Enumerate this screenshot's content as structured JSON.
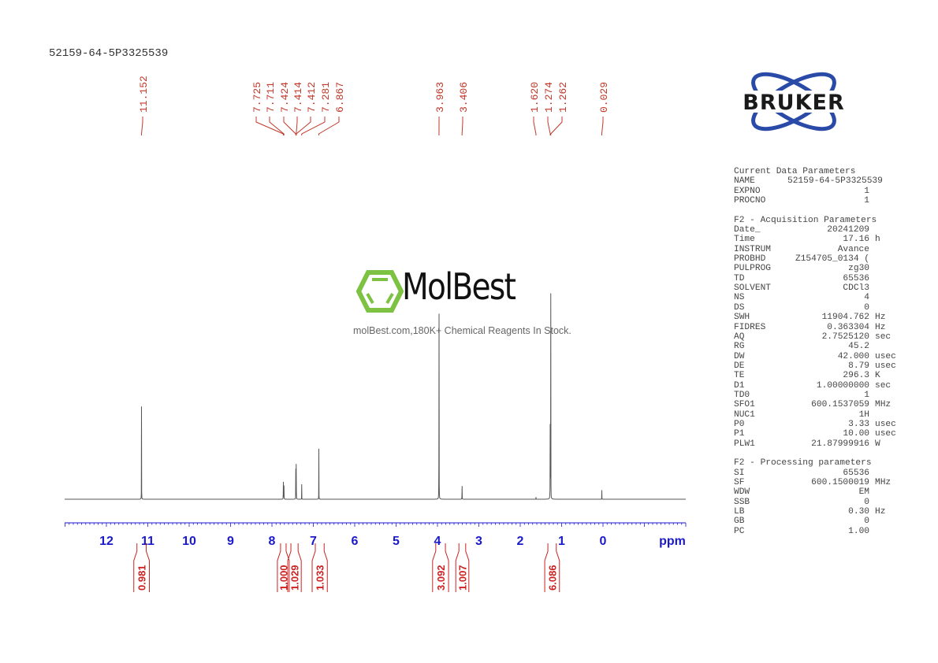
{
  "title": "52159-64-5P3325539",
  "logo": {
    "text": "BRUKER",
    "color": "#2a4aa8"
  },
  "watermark": {
    "brand": "MolBest",
    "tagline": "molBest.com,180K+ Chemical Reagents In Stock.",
    "icon": "benzene-hexagon-icon",
    "color": "#7dc242"
  },
  "colors": {
    "spectrum": "#555555",
    "peak_labels": "#c0392b",
    "axis": "#1a1acc",
    "integrals": "#cc2222"
  },
  "chart_data": {
    "type": "line",
    "xlabel": "ppm",
    "xlim": [
      13,
      -2
    ],
    "x_reversed": true,
    "xticks": [
      "12",
      "11",
      "10",
      "9",
      "8",
      "7",
      "6",
      "5",
      "4",
      "3",
      "2",
      "1",
      "0"
    ],
    "peaks": [
      {
        "ppm": 11.152,
        "intensity": 30
      },
      {
        "ppm": 7.725,
        "intensity": 10
      },
      {
        "ppm": 7.711,
        "intensity": 10
      },
      {
        "ppm": 7.424,
        "intensity": 9
      },
      {
        "ppm": 7.414,
        "intensity": 9
      },
      {
        "ppm": 7.412,
        "intensity": 8
      },
      {
        "ppm": 7.281,
        "intensity": 4.4
      },
      {
        "ppm": 6.867,
        "intensity": 16
      },
      {
        "ppm": 3.963,
        "intensity": 100
      },
      {
        "ppm": 3.406,
        "intensity": 8
      },
      {
        "ppm": 1.62,
        "intensity": 1
      },
      {
        "ppm": 1.274,
        "intensity": 94
      },
      {
        "ppm": 1.262,
        "intensity": 60
      },
      {
        "ppm": 0.029,
        "intensity": 3
      }
    ],
    "peak_labels": [
      "11.152",
      "7.725",
      "7.711",
      "7.424",
      "7.414",
      "7.412",
      "7.281",
      "6.867",
      "3.963",
      "3.406",
      "1.620",
      "1.274",
      "1.262",
      "0.029"
    ],
    "integrals": [
      {
        "from": 11.3,
        "to": 11.0,
        "value": "0.981"
      },
      {
        "from": 7.83,
        "to": 7.62,
        "value": "1.000"
      },
      {
        "from": 7.58,
        "to": 7.33,
        "value": "1.029"
      },
      {
        "from": 6.99,
        "to": 6.7,
        "value": "1.033"
      },
      {
        "from": 4.08,
        "to": 3.77,
        "value": "3.092"
      },
      {
        "from": 3.52,
        "to": 3.28,
        "value": "1.007"
      },
      {
        "from": 1.37,
        "to": 1.09,
        "value": "6.086"
      }
    ]
  },
  "parameters": {
    "current": {
      "heading": "Current Data Parameters",
      "rows": [
        {
          "k": "NAME",
          "v": "52159-64-5P3325539",
          "u": ""
        },
        {
          "k": "EXPNO",
          "v": "1",
          "u": ""
        },
        {
          "k": "PROCNO",
          "v": "1",
          "u": ""
        }
      ]
    },
    "acquisition": {
      "heading": "F2 - Acquisition Parameters",
      "rows": [
        {
          "k": "Date_",
          "v": "20241209",
          "u": ""
        },
        {
          "k": "Time",
          "v": "17.16",
          "u": "h"
        },
        {
          "k": "INSTRUM",
          "v": "Avance",
          "u": ""
        },
        {
          "k": "PROBHD",
          "v": "Z154705_0134 (",
          "u": ""
        },
        {
          "k": "PULPROG",
          "v": "zg30",
          "u": ""
        },
        {
          "k": "TD",
          "v": "65536",
          "u": ""
        },
        {
          "k": "SOLVENT",
          "v": "CDCl3",
          "u": ""
        },
        {
          "k": "NS",
          "v": "4",
          "u": ""
        },
        {
          "k": "DS",
          "v": "0",
          "u": ""
        },
        {
          "k": "SWH",
          "v": "11904.762",
          "u": "Hz"
        },
        {
          "k": "FIDRES",
          "v": "0.363304",
          "u": "Hz"
        },
        {
          "k": "AQ",
          "v": "2.7525120",
          "u": "sec"
        },
        {
          "k": "RG",
          "v": "45.2",
          "u": ""
        },
        {
          "k": "DW",
          "v": "42.000",
          "u": "usec"
        },
        {
          "k": "DE",
          "v": "8.79",
          "u": "usec"
        },
        {
          "k": "TE",
          "v": "296.3",
          "u": "K"
        },
        {
          "k": "D1",
          "v": "1.00000000",
          "u": "sec"
        },
        {
          "k": "TD0",
          "v": "1",
          "u": ""
        },
        {
          "k": "SFO1",
          "v": "600.1537059",
          "u": "MHz"
        },
        {
          "k": "NUC1",
          "v": "1H",
          "u": ""
        },
        {
          "k": "P0",
          "v": "3.33",
          "u": "usec"
        },
        {
          "k": "P1",
          "v": "10.00",
          "u": "usec"
        },
        {
          "k": "PLW1",
          "v": "21.87999916",
          "u": "W"
        }
      ]
    },
    "processing": {
      "heading": "F2 - Processing parameters",
      "rows": [
        {
          "k": "SI",
          "v": "65536",
          "u": ""
        },
        {
          "k": "SF",
          "v": "600.1500019",
          "u": "MHz"
        },
        {
          "k": "WDW",
          "v": "EM",
          "u": ""
        },
        {
          "k": "SSB",
          "v": "0",
          "u": ""
        },
        {
          "k": "LB",
          "v": "0.30",
          "u": "Hz"
        },
        {
          "k": "GB",
          "v": "0",
          "u": ""
        },
        {
          "k": "PC",
          "v": "1.00",
          "u": ""
        }
      ]
    }
  }
}
